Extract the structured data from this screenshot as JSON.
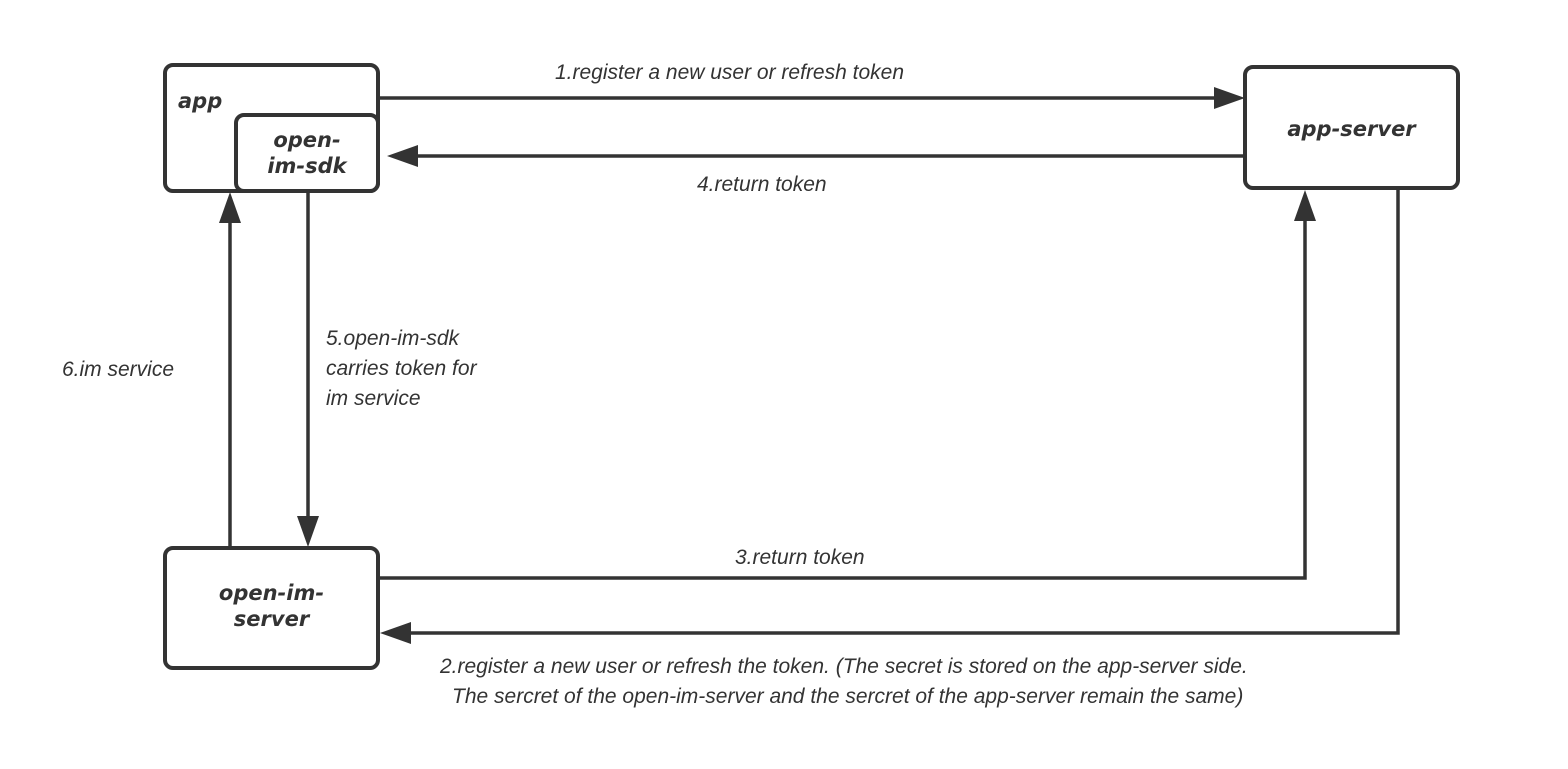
{
  "nodes": {
    "app": "app",
    "sdk_line1": "open-",
    "sdk_line2": "im-sdk",
    "app_server": "app-server",
    "im_server_line1": "open-im-",
    "im_server_line2": "server"
  },
  "edges": {
    "step1": "1.register a new user or refresh token",
    "step2_line1": "2.register a new user or refresh the token. (The secret is stored on the app-server side.",
    "step2_line2": "The sercret of the open-im-server and the sercret of the app-server remain the same)",
    "step3": "3.return token",
    "step4": "4.return token",
    "step5_line1": "5.open-im-sdk",
    "step5_line2": "carries token for",
    "step5_line3": "im service",
    "step6": "6.im service"
  },
  "colors": {
    "stroke": "#333333",
    "background": "#ffffff"
  }
}
